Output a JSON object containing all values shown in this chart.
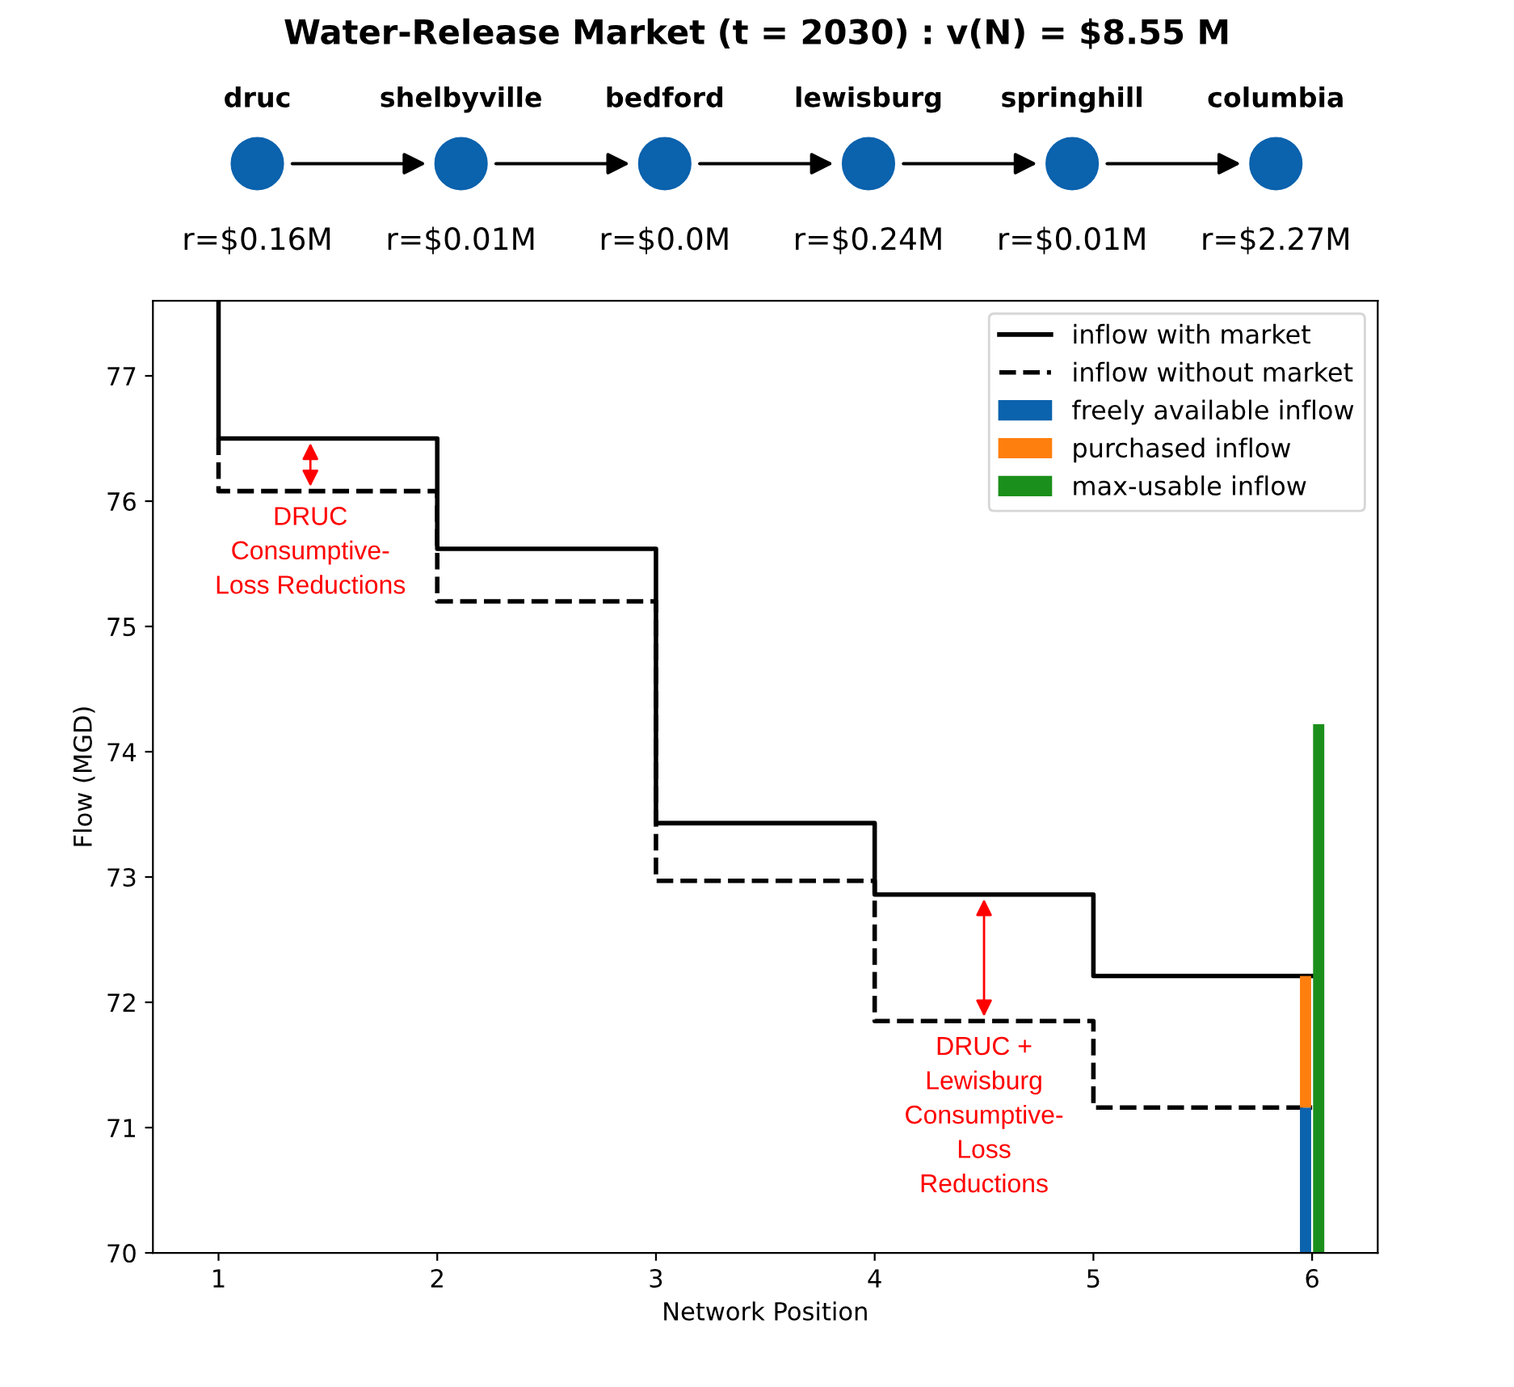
{
  "chart_data": [
    {
      "type": "other",
      "title": "Water-Release Market (t = 2030) : v(N) = $8.55 M",
      "categories": [
        "druc",
        "shelbyville",
        "bedford",
        "lewisburg",
        "springhill",
        "columbia"
      ],
      "value_labels": [
        "r=$0.16M",
        "r=$0.01M",
        "r=$0.0M",
        "r=$0.24M",
        "r=$0.01M",
        "r=$2.27M"
      ],
      "color": "#0b62ad"
    },
    {
      "type": "step",
      "xlabel": "Network Position",
      "ylabel": "Flow (MGD)",
      "series": [
        {
          "name": "inflow with market",
          "type": "step",
          "color": "#000000",
          "line_style": "solid",
          "x": [
            1,
            1,
            2,
            3,
            4,
            5,
            6
          ],
          "values": [
            77.6,
            76.5,
            75.62,
            73.43,
            72.86,
            72.21,
            72.21
          ]
        },
        {
          "name": "inflow without market",
          "type": "step",
          "color": "#000000",
          "line_style": "dashed",
          "x": [
            1,
            1,
            2,
            3,
            4,
            5,
            6
          ],
          "values": [
            76.5,
            76.08,
            75.2,
            72.97,
            71.85,
            71.16,
            71.16
          ]
        },
        {
          "name": "freely available inflow",
          "type": "line",
          "color": "#0b62ad",
          "x": [
            5.97,
            5.97
          ],
          "values": [
            70,
            71.16
          ]
        },
        {
          "name": "purchased inflow",
          "type": "line",
          "color": "#ff7f0e",
          "x": [
            5.97,
            5.97
          ],
          "values": [
            71.16,
            72.21
          ]
        },
        {
          "name": "max-usable inflow",
          "type": "line",
          "color": "#1b8f1b",
          "x": [
            6.03,
            6.03
          ],
          "values": [
            70,
            74.22
          ]
        }
      ],
      "annotations": [
        {
          "text": "DRUC\nConsumptive-\nLoss Reductions",
          "x": 1.42,
          "y": 76.5
        },
        {
          "text": "DRUC +\nLewisburg\nConsumptive-\nLoss\nReductions",
          "x": 4.5,
          "y": 72.86
        }
      ],
      "xlim": [
        0.7,
        6.3
      ],
      "ylim": [
        70,
        77.6
      ],
      "xticks": [
        1,
        2,
        3,
        4,
        5,
        6
      ],
      "yticks": [
        70,
        71,
        72,
        73,
        74,
        75,
        76,
        77
      ],
      "legend": "top right",
      "grid": false
    }
  ]
}
